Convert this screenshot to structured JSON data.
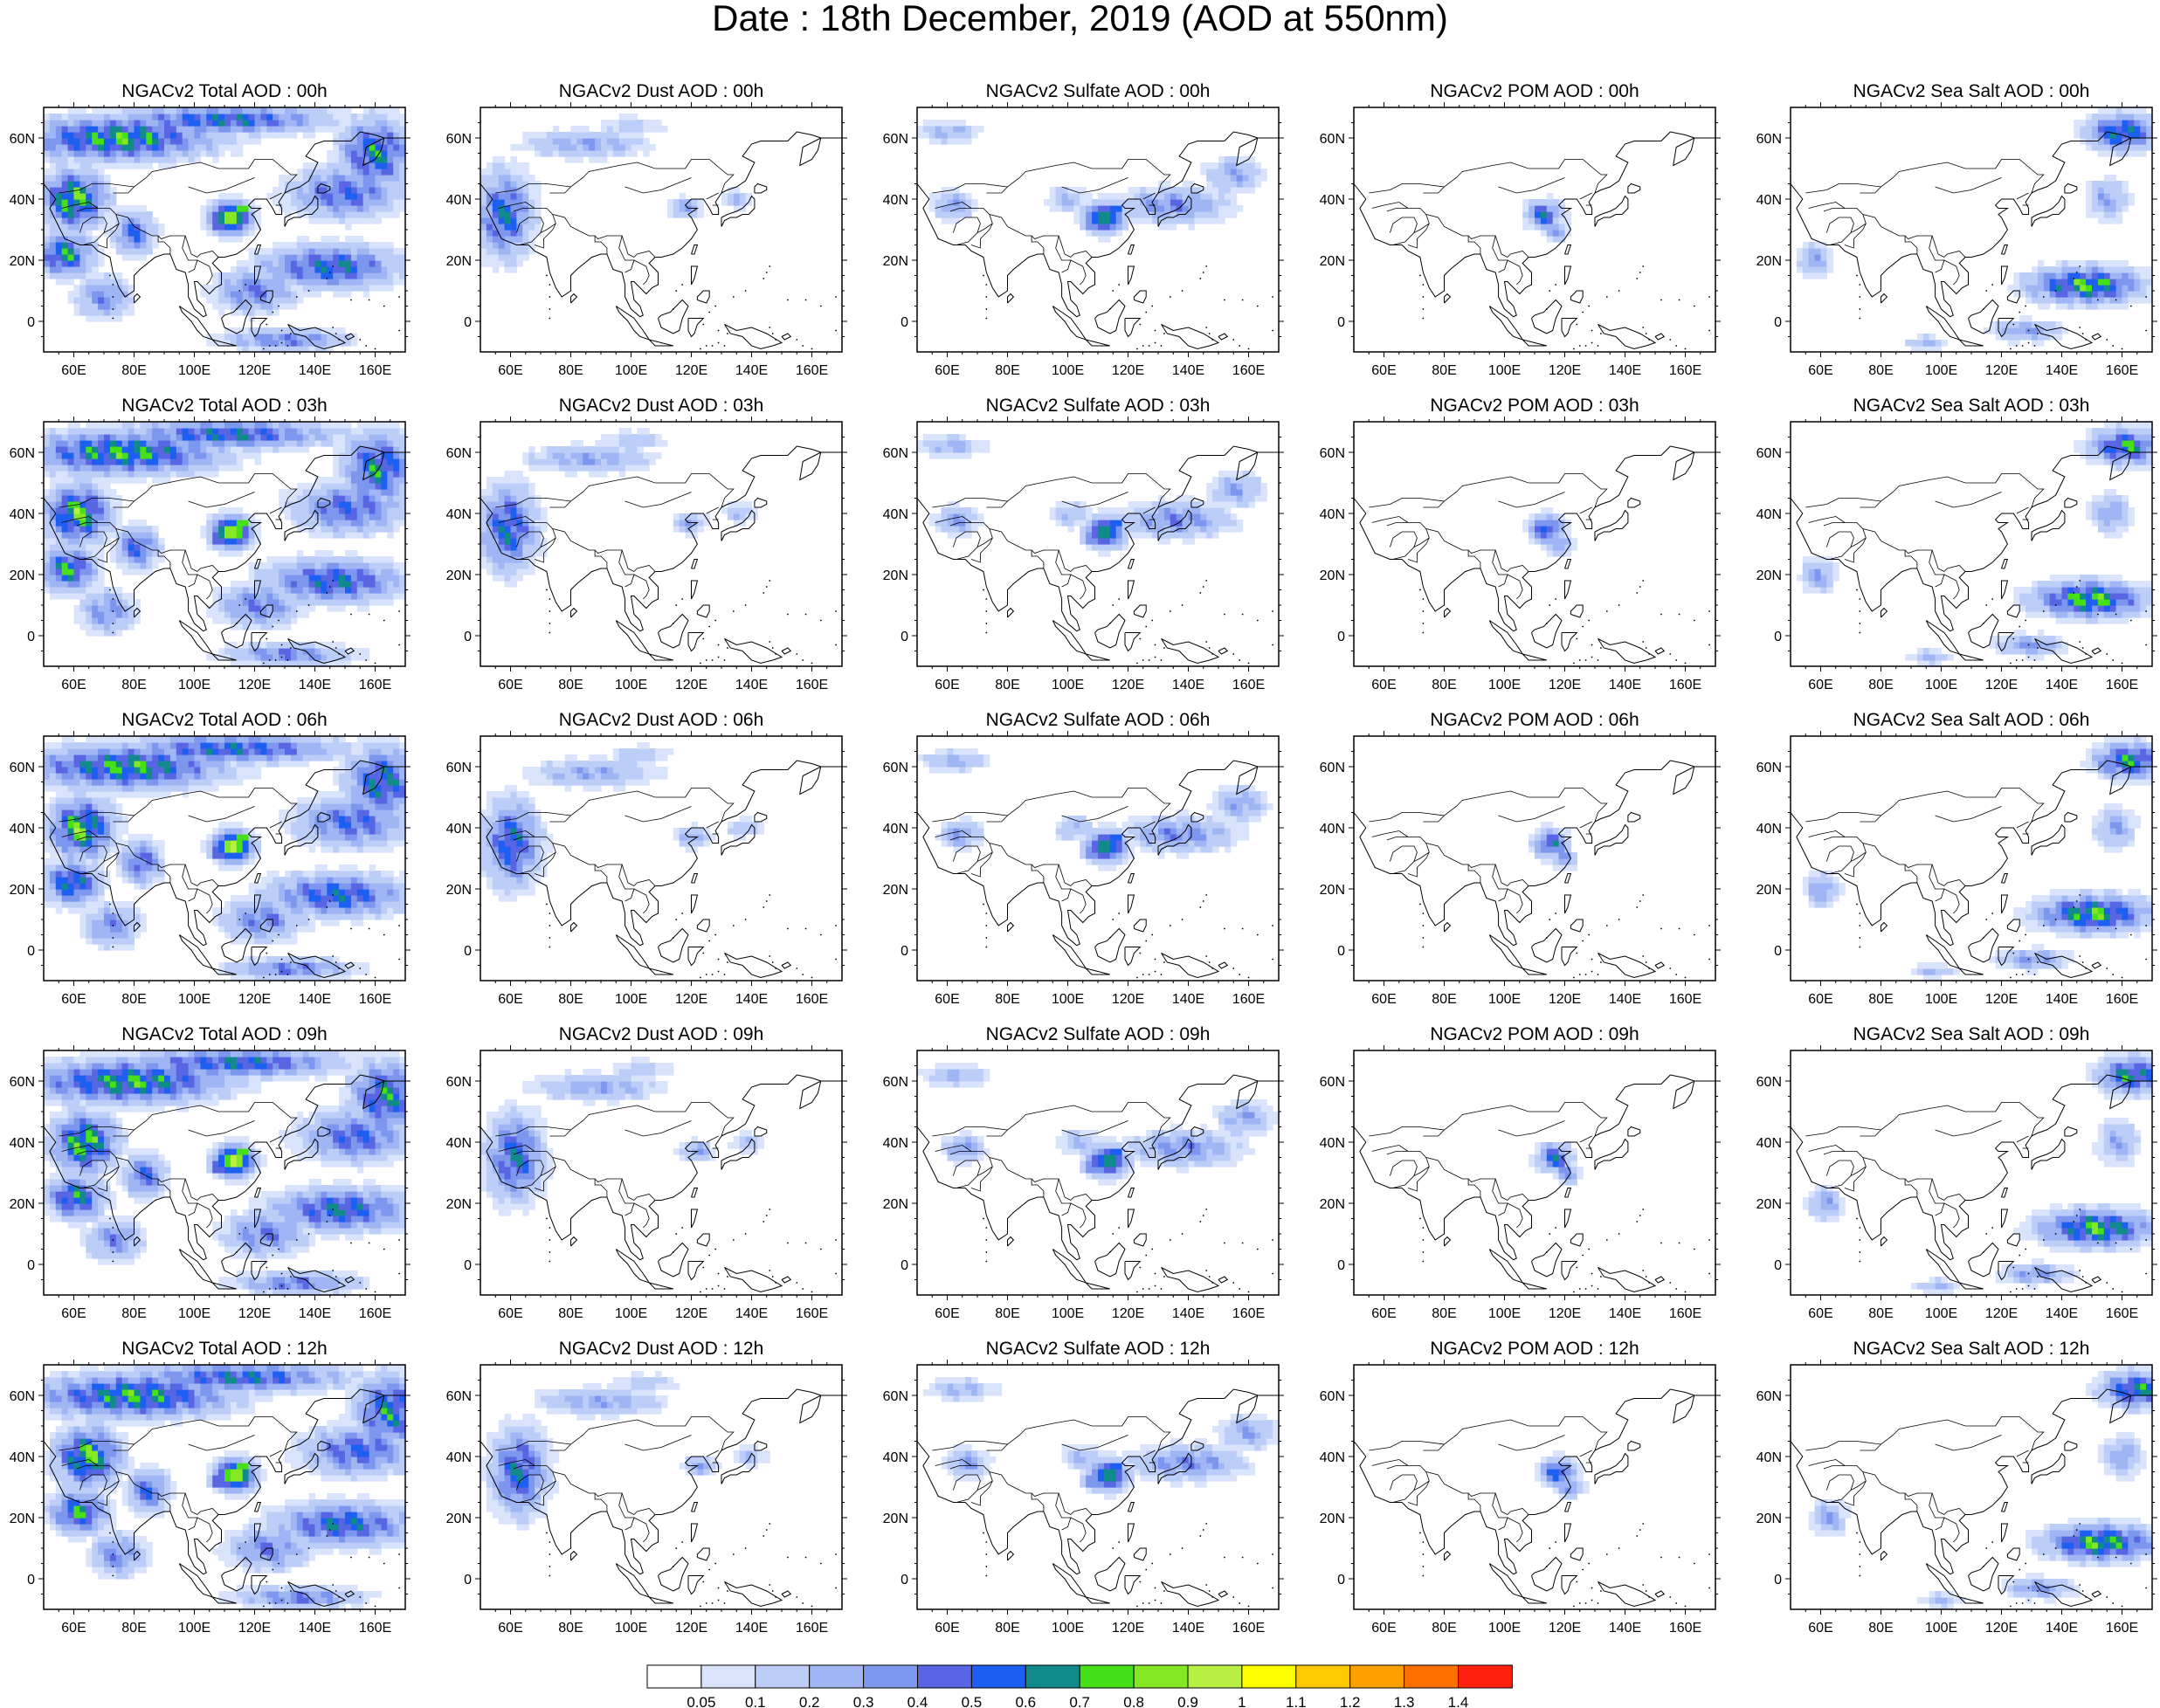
{
  "title": "Date : 18th December, 2019 (AOD at 550nm)",
  "panels": [
    [
      "NGACv2 Total AOD : 00h",
      "NGACv2 Dust AOD : 00h",
      "NGACv2 Sulfate AOD : 00h",
      "NGACv2 POM AOD : 00h",
      "NGACv2 Sea Salt AOD : 00h"
    ],
    [
      "NGACv2 Total AOD : 03h",
      "NGACv2 Dust AOD : 03h",
      "NGACv2 Sulfate AOD : 03h",
      "NGACv2 POM AOD : 03h",
      "NGACv2 Sea Salt AOD : 03h"
    ],
    [
      "NGACv2 Total AOD : 06h",
      "NGACv2 Dust AOD : 06h",
      "NGACv2 Sulfate AOD : 06h",
      "NGACv2 POM AOD : 06h",
      "NGACv2 Sea Salt AOD : 06h"
    ],
    [
      "NGACv2 Total AOD : 09h",
      "NGACv2 Dust AOD : 09h",
      "NGACv2 Sulfate AOD : 09h",
      "NGACv2 POM AOD : 09h",
      "NGACv2 Sea Salt  AOD : 09h"
    ],
    [
      "NGACv2 Total AOD  : 12h",
      "NGACv2 Dust AOD : 12h",
      "NGACv2 Sulfate AOD : 12h",
      "NGACv2 POM  AOD : 12h",
      "NGACv2 Sea Salt  AOD : 12h"
    ]
  ],
  "lat_ticks": [
    "60N",
    "40N",
    "20N",
    "0"
  ],
  "lon_ticks": [
    "60E",
    "80E",
    "100E",
    "120E",
    "140E",
    "160E"
  ],
  "colorbar": {
    "labels": [
      "0.05",
      "0.1",
      "0.2",
      "0.3",
      "0.4",
      "0.5",
      "0.6",
      "0.7",
      "0.8",
      "0.9",
      "1",
      "1.1",
      "1.2",
      "1.3",
      "1.4"
    ],
    "colors": [
      "#ffffff",
      "#d9e3fc",
      "#bccdf8",
      "#a0b6f4",
      "#7d96ee",
      "#5966e4",
      "#1d5ff0",
      "#108a8a",
      "#45e01a",
      "#84e824",
      "#b9ef42",
      "#ffff00",
      "#ffc800",
      "#ffa000",
      "#ff7000",
      "#ff2010"
    ]
  },
  "chart_data": {
    "type": "heatmap",
    "variable": "AOD at 550nm",
    "date": "18th December, 2019",
    "species": [
      "Total",
      "Dust",
      "Sulfate",
      "POM",
      "Sea Salt"
    ],
    "times": [
      "00h",
      "03h",
      "06h",
      "09h",
      "12h"
    ],
    "lon_range": [
      50,
      170
    ],
    "lat_range": [
      -10,
      70
    ]
  }
}
